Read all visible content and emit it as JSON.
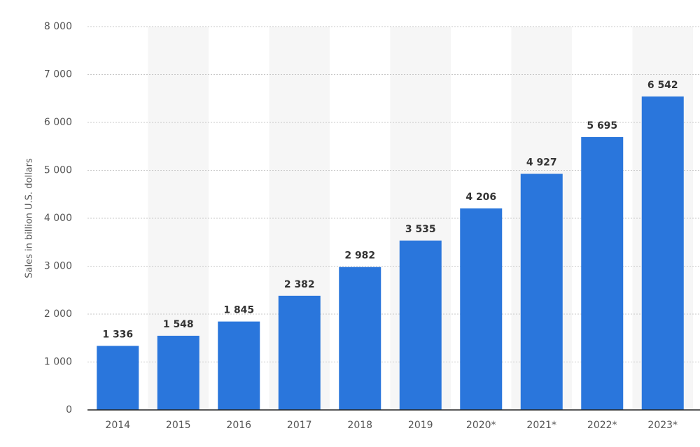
{
  "chart_data": {
    "type": "bar",
    "y_axis_label": "Sales in billion U.S. dollars",
    "categories": [
      "2014",
      "2015",
      "2016",
      "2017",
      "2018",
      "2019",
      "2020*",
      "2021*",
      "2022*",
      "2023*"
    ],
    "values": [
      1336,
      1548,
      1845,
      2382,
      2982,
      3535,
      4206,
      4927,
      5695,
      6542
    ],
    "value_labels": [
      "1 336",
      "1 548",
      "1 845",
      "2 382",
      "2 982",
      "3 535",
      "4 206",
      "4 927",
      "5 695",
      "6 542"
    ],
    "color": "#2a76dc",
    "ylim": [
      0,
      8000
    ],
    "yticks": [
      0,
      {
        "value": 1000,
        "label": "1 000"
      },
      {
        "value": 2000,
        "label": "2 000"
      },
      {
        "value": 3000,
        "label": "3 000"
      },
      {
        "value": 4000,
        "label": "4 000"
      },
      {
        "value": 5000,
        "label": "5 000"
      },
      {
        "value": 6000,
        "label": "6 000"
      },
      {
        "value": 7000,
        "label": "7 000"
      },
      {
        "value": 8000,
        "label": "8 000"
      }
    ],
    "grid": true
  }
}
